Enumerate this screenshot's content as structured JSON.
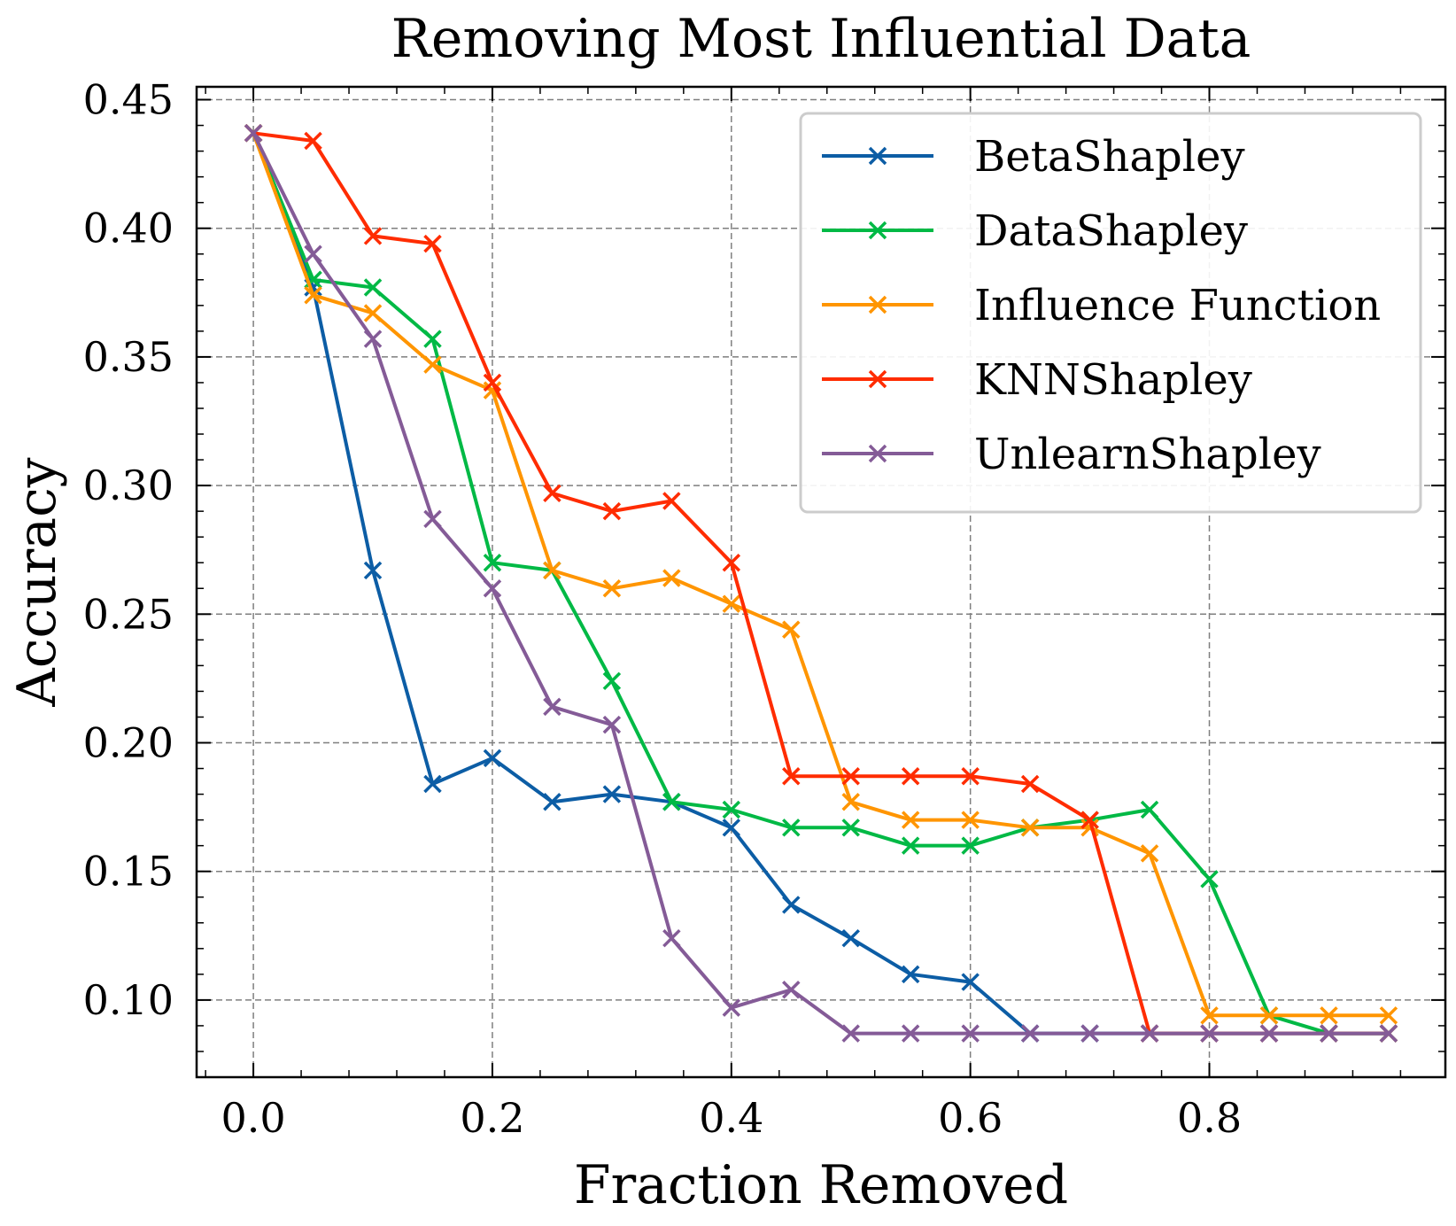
{
  "chart_data": {
    "type": "line",
    "title": "Removing Most Influential Data",
    "xlabel": "Fraction Removed",
    "ylabel": "Accuracy",
    "xlim": [
      -0.0475,
      0.9975
    ],
    "ylim": [
      0.07,
      0.455
    ],
    "grid": true,
    "legend_position": "top-right",
    "x_ticks": [
      {
        "value": 0.0,
        "label": "0.0"
      },
      {
        "value": 0.2,
        "label": "0.2"
      },
      {
        "value": 0.4,
        "label": "0.4"
      },
      {
        "value": 0.6,
        "label": "0.6"
      },
      {
        "value": 0.8,
        "label": "0.8"
      }
    ],
    "y_ticks": [
      {
        "value": 0.1,
        "label": "0.10"
      },
      {
        "value": 0.15,
        "label": "0.15"
      },
      {
        "value": 0.2,
        "label": "0.20"
      },
      {
        "value": 0.25,
        "label": "0.25"
      },
      {
        "value": 0.3,
        "label": "0.30"
      },
      {
        "value": 0.35,
        "label": "0.35"
      },
      {
        "value": 0.4,
        "label": "0.40"
      },
      {
        "value": 0.45,
        "label": "0.45"
      }
    ],
    "x": [
      0.0,
      0.05,
      0.1,
      0.15,
      0.2,
      0.25,
      0.3,
      0.35,
      0.4,
      0.45,
      0.5,
      0.55,
      0.6,
      0.65,
      0.7,
      0.75,
      0.8,
      0.85,
      0.9,
      0.95
    ],
    "series": [
      {
        "name": "BetaShapley",
        "color": "#0C5DA5",
        "values": [
          0.437,
          0.377,
          0.267,
          0.184,
          0.194,
          0.177,
          0.18,
          0.177,
          0.167,
          0.137,
          0.124,
          0.11,
          0.107,
          0.087,
          0.087,
          0.087,
          0.087,
          0.087,
          0.087,
          0.087
        ]
      },
      {
        "name": "DataShapley",
        "color": "#00B945",
        "values": [
          0.437,
          0.38,
          0.377,
          0.357,
          0.27,
          0.267,
          0.224,
          0.177,
          0.174,
          0.167,
          0.167,
          0.16,
          0.16,
          0.167,
          0.17,
          0.174,
          0.147,
          0.094,
          0.087,
          0.087
        ]
      },
      {
        "name": "Influence Function",
        "color": "#FF9500",
        "values": [
          0.437,
          0.374,
          0.367,
          0.347,
          0.337,
          0.267,
          0.26,
          0.264,
          0.254,
          0.244,
          0.177,
          0.17,
          0.17,
          0.167,
          0.167,
          0.157,
          0.094,
          0.094,
          0.094,
          0.094
        ]
      },
      {
        "name": "KNNShapley",
        "color": "#FF2C00",
        "values": [
          0.437,
          0.434,
          0.397,
          0.394,
          0.34,
          0.297,
          0.29,
          0.294,
          0.27,
          0.187,
          0.187,
          0.187,
          0.187,
          0.184,
          0.17,
          0.087,
          0.087,
          0.087,
          0.087,
          0.087
        ]
      },
      {
        "name": "UnlearnShapley",
        "color": "#845B97",
        "values": [
          0.437,
          0.39,
          0.357,
          0.287,
          0.26,
          0.214,
          0.207,
          0.124,
          0.097,
          0.104,
          0.087,
          0.087,
          0.087,
          0.087,
          0.087,
          0.087,
          0.087,
          0.087,
          0.087,
          0.087
        ]
      }
    ]
  }
}
